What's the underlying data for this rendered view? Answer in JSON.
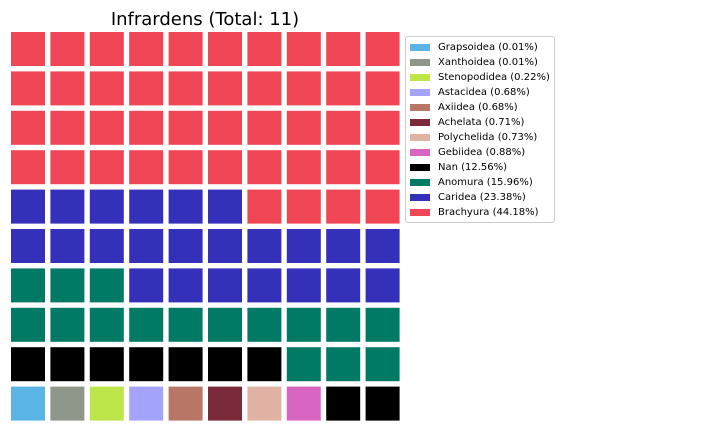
{
  "chart_data": {
    "type": "waffle",
    "title": "Infrardens (Total: 11)",
    "grid": {
      "rows": 10,
      "columns": 10
    },
    "legend_position": "right",
    "series": [
      {
        "name": "Grapsoidea (0.01%)",
        "label": "Grapsoidea",
        "percent": 0.01,
        "cells": 1,
        "color": "#5ab4e5"
      },
      {
        "name": "Xanthoidea (0.01%)",
        "label": "Xanthoidea",
        "percent": 0.01,
        "cells": 1,
        "color": "#8e978a"
      },
      {
        "name": "Stenopodidea (0.22%)",
        "label": "Stenopodidea",
        "percent": 0.22,
        "cells": 1,
        "color": "#bce64a"
      },
      {
        "name": "Astacidea (0.68%)",
        "label": "Astacidea",
        "percent": 0.68,
        "cells": 1,
        "color": "#a4a4fd"
      },
      {
        "name": "Axiidea (0.68%)",
        "label": "Axiidea",
        "percent": 0.68,
        "cells": 1,
        "color": "#b87666"
      },
      {
        "name": "Achelata (0.71%)",
        "label": "Achelata",
        "percent": 0.71,
        "cells": 1,
        "color": "#7b2a39"
      },
      {
        "name": "Polychelida (0.73%)",
        "label": "Polychelida",
        "percent": 0.73,
        "cells": 1,
        "color": "#e0b2a3"
      },
      {
        "name": "Gebiidea (0.88%)",
        "label": "Gebiidea",
        "percent": 0.88,
        "cells": 1,
        "color": "#d765c1"
      },
      {
        "name": "Nan (12.56%)",
        "label": "Nan",
        "percent": 12.56,
        "cells": 9,
        "color": "#000000"
      },
      {
        "name": "Anomura (15.96%)",
        "label": "Anomura",
        "percent": 15.96,
        "cells": 16,
        "color": "#007a64"
      },
      {
        "name": "Caridea (23.38%)",
        "label": "Caridea",
        "percent": 23.38,
        "cells": 23,
        "color": "#3530b9"
      },
      {
        "name": "Brachyura (44.18%)",
        "label": "Brachyura",
        "percent": 44.18,
        "cells": 44,
        "color": "#f04555"
      }
    ]
  }
}
